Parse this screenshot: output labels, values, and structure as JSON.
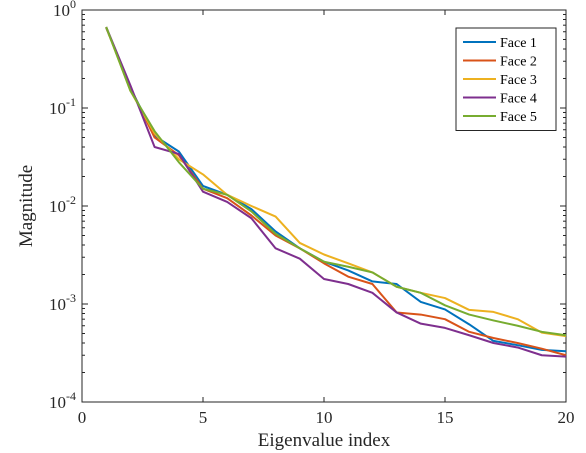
{
  "chart_data": {
    "type": "line",
    "title": "",
    "xlabel": "Eigenvalue index",
    "ylabel": "Magnitude",
    "xlim": [
      0,
      20
    ],
    "ylim": [
      0.0001,
      1
    ],
    "yscale": "log",
    "grid": false,
    "legend_position": "top-right",
    "x_ticks": [
      0,
      5,
      10,
      15,
      20
    ],
    "x_tick_labels": [
      "0",
      "5",
      "10",
      "15",
      "20"
    ],
    "y_ticks": [
      0.0001,
      0.001,
      0.01,
      0.1,
      1
    ],
    "y_tick_labels": [
      {
        "base": "10",
        "exp": "-4"
      },
      {
        "base": "10",
        "exp": "-3"
      },
      {
        "base": "10",
        "exp": "-2"
      },
      {
        "base": "10",
        "exp": "-1"
      },
      {
        "base": "10",
        "exp": "0"
      }
    ],
    "x": [
      1,
      2,
      3,
      4,
      5,
      6,
      7,
      8,
      9,
      10,
      11,
      12,
      13,
      14,
      15,
      16,
      17,
      18,
      19,
      20
    ],
    "series": [
      {
        "name": "Face 1",
        "color": "#0072BD",
        "values": [
          0.66,
          0.16,
          0.052,
          0.036,
          0.016,
          0.013,
          0.0093,
          0.0055,
          0.0037,
          0.0027,
          0.0022,
          0.0017,
          0.0016,
          0.00105,
          0.00088,
          0.00062,
          0.00042,
          0.00038,
          0.00034,
          0.00033
        ]
      },
      {
        "name": "Face 2",
        "color": "#D95319",
        "values": [
          0.66,
          0.16,
          0.05,
          0.033,
          0.015,
          0.012,
          0.008,
          0.005,
          0.0037,
          0.0026,
          0.0019,
          0.0016,
          0.00082,
          0.00078,
          0.0007,
          0.00052,
          0.00045,
          0.0004,
          0.00035,
          0.0003
        ]
      },
      {
        "name": "Face 3",
        "color": "#EDB120",
        "values": [
          0.67,
          0.15,
          0.055,
          0.03,
          0.021,
          0.013,
          0.01,
          0.0078,
          0.0042,
          0.0032,
          0.0026,
          0.0021,
          0.0015,
          0.0013,
          0.00115,
          0.00087,
          0.00083,
          0.0007,
          0.00051,
          0.00047
        ]
      },
      {
        "name": "Face 4",
        "color": "#7E2F8E",
        "values": [
          0.67,
          0.17,
          0.04,
          0.034,
          0.014,
          0.011,
          0.0075,
          0.0037,
          0.0029,
          0.0018,
          0.0016,
          0.0013,
          0.00082,
          0.00063,
          0.00057,
          0.00048,
          0.0004,
          0.00036,
          0.0003,
          0.00029
        ]
      },
      {
        "name": "Face 5",
        "color": "#77AC30",
        "values": [
          0.67,
          0.15,
          0.058,
          0.028,
          0.015,
          0.013,
          0.0088,
          0.0052,
          0.0037,
          0.0027,
          0.0024,
          0.0021,
          0.0015,
          0.0013,
          0.00097,
          0.00078,
          0.00068,
          0.0006,
          0.00052,
          0.00048
        ]
      }
    ]
  }
}
